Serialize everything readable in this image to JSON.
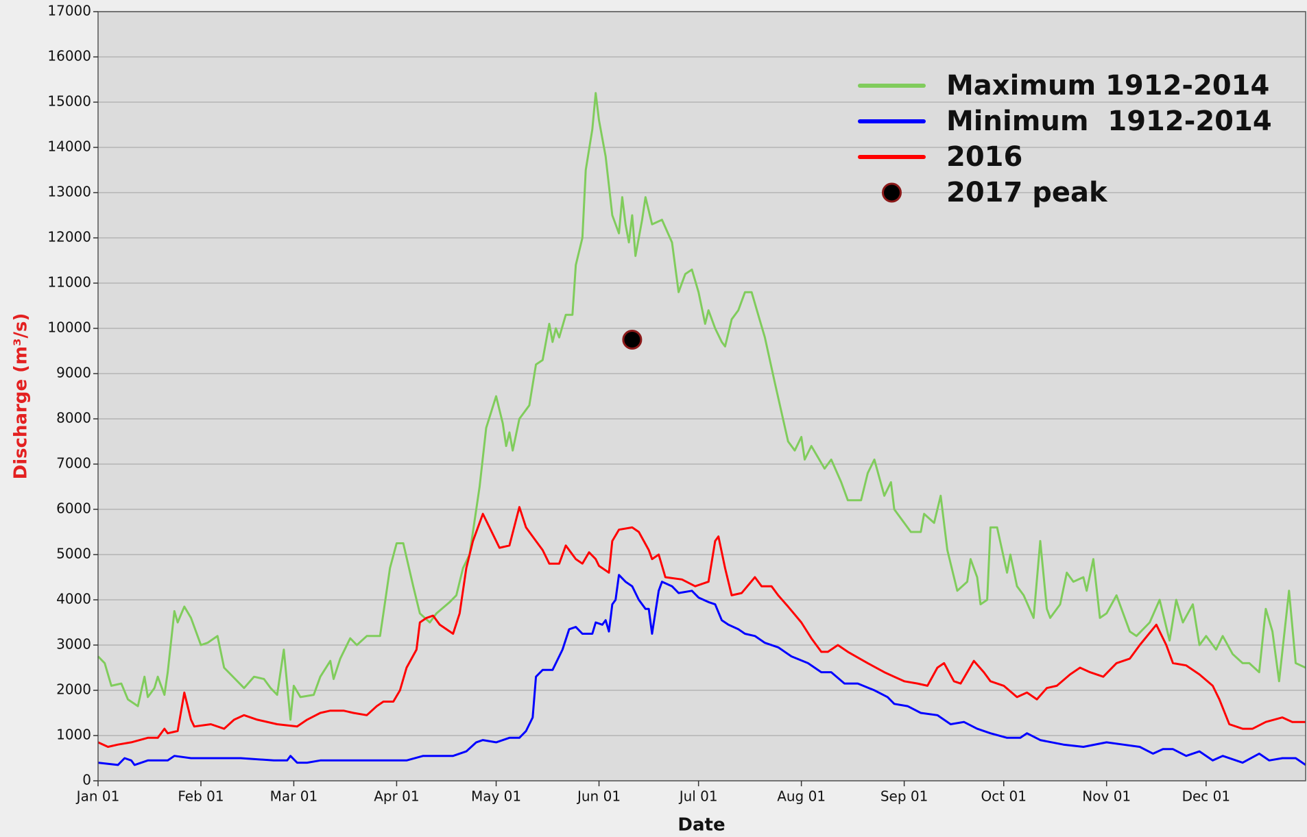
{
  "chart_data": {
    "type": "line",
    "x_label": "Date",
    "y_label": "Discharge (m³/s)",
    "xlim": [
      0,
      364
    ],
    "xticks": [
      {
        "value": 0,
        "label": "Jan 01"
      },
      {
        "value": 31,
        "label": "Feb 01"
      },
      {
        "value": 59,
        "label": "Mar 01"
      },
      {
        "value": 90,
        "label": "Apr 01"
      },
      {
        "value": 120,
        "label": "May 01"
      },
      {
        "value": 151,
        "label": "Jun 01"
      },
      {
        "value": 181,
        "label": "Jul 01"
      },
      {
        "value": 212,
        "label": "Aug 01"
      },
      {
        "value": 243,
        "label": "Sep 01"
      },
      {
        "value": 273,
        "label": "Oct 01"
      },
      {
        "value": 304,
        "label": "Nov 01"
      },
      {
        "value": 334,
        "label": "Dec 01"
      }
    ],
    "ylim": [
      0,
      17000
    ],
    "yticks": [
      0,
      1000,
      2000,
      3000,
      4000,
      5000,
      6000,
      7000,
      8000,
      9000,
      10000,
      11000,
      12000,
      13000,
      14000,
      15000,
      16000,
      17000
    ],
    "grid": true,
    "legend": "upper right",
    "series": [
      {
        "name": "Maximum 1912-2014",
        "color": "#80cc5c",
        "x": [
          0,
          2,
          4,
          7,
          9,
          12,
          14,
          15,
          17,
          18,
          20,
          21,
          23,
          24,
          26,
          28,
          31,
          33,
          36,
          38,
          42,
          44,
          47,
          50,
          52,
          54,
          56,
          58,
          59,
          61,
          65,
          67,
          70,
          71,
          73,
          76,
          78,
          81,
          85,
          86,
          88,
          90,
          92,
          95,
          97,
          100,
          102,
          106,
          108,
          110,
          112,
          115,
          117,
          120,
          122,
          123,
          124,
          125,
          127,
          129,
          130,
          132,
          134,
          136,
          137,
          138,
          139,
          141,
          143,
          144,
          146,
          147,
          149,
          150,
          151,
          153,
          155,
          157,
          158,
          159,
          160,
          161,
          162,
          164,
          165,
          167,
          170,
          173,
          175,
          177,
          179,
          181,
          183,
          184,
          186,
          188,
          189,
          191,
          193,
          195,
          197,
          199,
          201,
          204,
          208,
          210,
          212,
          213,
          215,
          219,
          221,
          224,
          226,
          230,
          232,
          234,
          237,
          239,
          240,
          243,
          245,
          248,
          249,
          252,
          254,
          256,
          259,
          262,
          263,
          265,
          266,
          268,
          269,
          271,
          274,
          275,
          277,
          279,
          282,
          284,
          286,
          287,
          290,
          292,
          294,
          297,
          298,
          300,
          302,
          304,
          307,
          311,
          313,
          317,
          320,
          323,
          325,
          327,
          330,
          332,
          334,
          337,
          339,
          342,
          345,
          347,
          350,
          352,
          354,
          356,
          359,
          361,
          364
        ],
        "values": [
          2750,
          2600,
          2100,
          2150,
          1800,
          1650,
          2300,
          1850,
          2050,
          2300,
          1900,
          2400,
          3750,
          3500,
          3850,
          3600,
          3000,
          3050,
          3200,
          2500,
          2200,
          2050,
          2300,
          2250,
          2050,
          1900,
          2900,
          1350,
          2100,
          1850,
          1900,
          2300,
          2650,
          2250,
          2700,
          3150,
          3000,
          3200,
          3200,
          3700,
          4700,
          5250,
          5250,
          4300,
          3700,
          3500,
          3700,
          3950,
          4100,
          4700,
          5000,
          6500,
          7800,
          8500,
          7900,
          7400,
          7700,
          7300,
          8000,
          8200,
          8300,
          9200,
          9300,
          10100,
          9700,
          10000,
          9800,
          10300,
          10300,
          11400,
          12000,
          13500,
          14400,
          15200,
          14600,
          13800,
          12500,
          12100,
          12900,
          12300,
          11900,
          12500,
          11600,
          12400,
          12900,
          12300,
          12400,
          11900,
          10800,
          11200,
          11300,
          10800,
          10100,
          10400,
          10000,
          9700,
          9600,
          10200,
          10400,
          10800,
          10800,
          10300,
          9800,
          8800,
          7500,
          7300,
          7600,
          7100,
          7400,
          6900,
          7100,
          6600,
          6200,
          6200,
          6800,
          7100,
          6300,
          6600,
          6000,
          5700,
          5500,
          5500,
          5900,
          5700,
          6300,
          5100,
          4200,
          4400,
          4900,
          4500,
          3900,
          4000,
          5600,
          5600,
          4600,
          5000,
          4300,
          4100,
          3600,
          5300,
          3800,
          3600,
          3900,
          4600,
          4400,
          4500,
          4200,
          4900,
          3600,
          3700,
          4100,
          3300,
          3200,
          3500,
          4000,
          3100,
          4000,
          3500,
          3900,
          3000,
          3200,
          2900,
          3200,
          2800,
          2600,
          2600,
          2400,
          3800,
          3300,
          2200,
          4200,
          2600,
          2500
        ]
      },
      {
        "name": "Minimum  1912-2014",
        "color": "#0000ff",
        "x": [
          0,
          6,
          8,
          10,
          11,
          15,
          21,
          23,
          28,
          36,
          43,
          53,
          57,
          58,
          60,
          63,
          67,
          76,
          86,
          93,
          98,
          107,
          111,
          114,
          116,
          120,
          124,
          127,
          129,
          131,
          132,
          134,
          137,
          140,
          142,
          144,
          146,
          149,
          150,
          152,
          153,
          154,
          155,
          156,
          157,
          159,
          161,
          163,
          165,
          166,
          167,
          169,
          170,
          173,
          175,
          179,
          181,
          184,
          186,
          188,
          190,
          193,
          195,
          198,
          201,
          205,
          209,
          214,
          218,
          221,
          225,
          229,
          234,
          238,
          240,
          244,
          248,
          253,
          257,
          261,
          265,
          269,
          274,
          278,
          280,
          284,
          291,
          297,
          304,
          309,
          314,
          318,
          321,
          324,
          328,
          332,
          336,
          339,
          345,
          350,
          353,
          357,
          361,
          364
        ],
        "values": [
          400,
          350,
          500,
          450,
          350,
          450,
          450,
          550,
          500,
          500,
          500,
          450,
          450,
          550,
          400,
          400,
          450,
          450,
          450,
          450,
          550,
          550,
          650,
          850,
          900,
          850,
          950,
          950,
          1100,
          1400,
          2300,
          2450,
          2450,
          2900,
          3350,
          3400,
          3250,
          3250,
          3500,
          3450,
          3550,
          3300,
          3900,
          4000,
          4550,
          4400,
          4300,
          4000,
          3800,
          3800,
          3250,
          4200,
          4400,
          4300,
          4150,
          4200,
          4050,
          3950,
          3900,
          3550,
          3450,
          3350,
          3250,
          3200,
          3050,
          2950,
          2750,
          2600,
          2400,
          2400,
          2150,
          2150,
          2000,
          1850,
          1700,
          1650,
          1500,
          1450,
          1250,
          1300,
          1150,
          1050,
          950,
          950,
          1050,
          900,
          800,
          750,
          850,
          800,
          750,
          600,
          700,
          700,
          550,
          650,
          450,
          550,
          400,
          600,
          450,
          500,
          500,
          350
        ]
      },
      {
        "name": "2016",
        "color": "#ff0000",
        "x": [
          0,
          3,
          6,
          10,
          15,
          18,
          20,
          21,
          24,
          26,
          28,
          29,
          34,
          38,
          41,
          44,
          48,
          54,
          60,
          63,
          67,
          70,
          74,
          77,
          81,
          84,
          86,
          89,
          91,
          93,
          96,
          97,
          99,
          101,
          103,
          107,
          109,
          111,
          113,
          116,
          118,
          121,
          124,
          127,
          129,
          132,
          134,
          136,
          139,
          141,
          144,
          146,
          148,
          150,
          151,
          154,
          155,
          157,
          161,
          163,
          166,
          167,
          169,
          171,
          176,
          180,
          184,
          186,
          187,
          189,
          191,
          194,
          198,
          200,
          203,
          205,
          208,
          212,
          215,
          218,
          220,
          223,
          226,
          232,
          237,
          240,
          243,
          247,
          250,
          253,
          255,
          258,
          260,
          264,
          267,
          269,
          273,
          277,
          280,
          283,
          286,
          289,
          293,
          296,
          299,
          303,
          307,
          311,
          314,
          319,
          322,
          324,
          328,
          332,
          336,
          338,
          341,
          345,
          348,
          352,
          357,
          360,
          364
        ],
        "values": [
          850,
          750,
          800,
          850,
          950,
          950,
          1150,
          1050,
          1100,
          1950,
          1350,
          1200,
          1250,
          1150,
          1350,
          1450,
          1350,
          1250,
          1200,
          1350,
          1500,
          1550,
          1550,
          1500,
          1450,
          1650,
          1750,
          1750,
          2000,
          2500,
          2900,
          3500,
          3600,
          3650,
          3450,
          3250,
          3700,
          4700,
          5300,
          5900,
          5600,
          5150,
          5200,
          6050,
          5600,
          5300,
          5100,
          4800,
          4800,
          5200,
          4900,
          4800,
          5050,
          4900,
          4750,
          4600,
          5300,
          5550,
          5600,
          5500,
          5100,
          4900,
          5000,
          4500,
          4450,
          4300,
          4400,
          5300,
          5400,
          4700,
          4100,
          4150,
          4500,
          4300,
          4300,
          4100,
          3850,
          3500,
          3150,
          2850,
          2850,
          3000,
          2850,
          2600,
          2400,
          2300,
          2200,
          2150,
          2100,
          2500,
          2600,
          2200,
          2150,
          2650,
          2400,
          2200,
          2100,
          1850,
          1950,
          1800,
          2050,
          2100,
          2350,
          2500,
          2400,
          2300,
          2600,
          2700,
          3000,
          3450,
          3000,
          2600,
          2550,
          2350,
          2100,
          1800,
          1250,
          1150,
          1150,
          1300,
          1400,
          1300,
          1300
        ]
      },
      {
        "name": "2017 peak",
        "type": "scatter",
        "color": "#000000",
        "x": [
          161
        ],
        "values": [
          9750
        ]
      }
    ]
  }
}
